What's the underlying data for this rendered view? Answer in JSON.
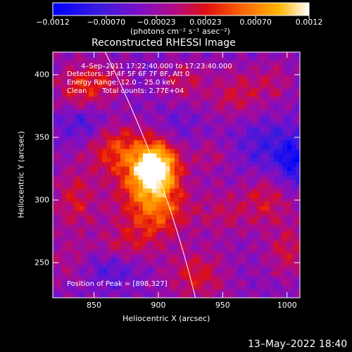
{
  "chart_data": {
    "type": "heatmap",
    "title": "Reconstructed RHESSI Image",
    "xlabel": "Heliocentric X (arcsec)",
    "ylabel": "Heliocentric Y (arcsec)",
    "xlim": [
      818,
      1010
    ],
    "ylim": [
      222,
      418
    ],
    "x_ticks": [
      850,
      900,
      950,
      1000
    ],
    "y_ticks": [
      250,
      300,
      350,
      400
    ],
    "colorbar": {
      "label": "(photons cm⁻² s⁻¹ asec⁻²)",
      "min": -0.0012,
      "max": 0.0012,
      "tick_values": [
        -0.0012,
        -0.0007,
        -0.00023,
        0.00023,
        0.0007,
        0.0012
      ],
      "tick_labels": [
        "−0.0012",
        "−0.00070",
        "−0.00023",
        "0.00023",
        "0.00070",
        "0.0012"
      ]
    },
    "annotations": {
      "time_range": "4–Sep–2011 17:22:40.000 to 17:23:40.000",
      "detectors": "Detectors: 3F 4F 5F 6F 7F 8F, Att 0",
      "energy": "Energy Range: 12.0 – 25.0 keV",
      "method": "Clean",
      "counts": "Total counts: 2.77E+04",
      "peak": "Position of Peak = [898,327]"
    },
    "peak": {
      "x": 898,
      "y": 327
    },
    "footer_date": "13–May–2022 18:40",
    "colors": {
      "background": "#000000",
      "text": "#ffffff",
      "limb": "#ffffff"
    }
  }
}
